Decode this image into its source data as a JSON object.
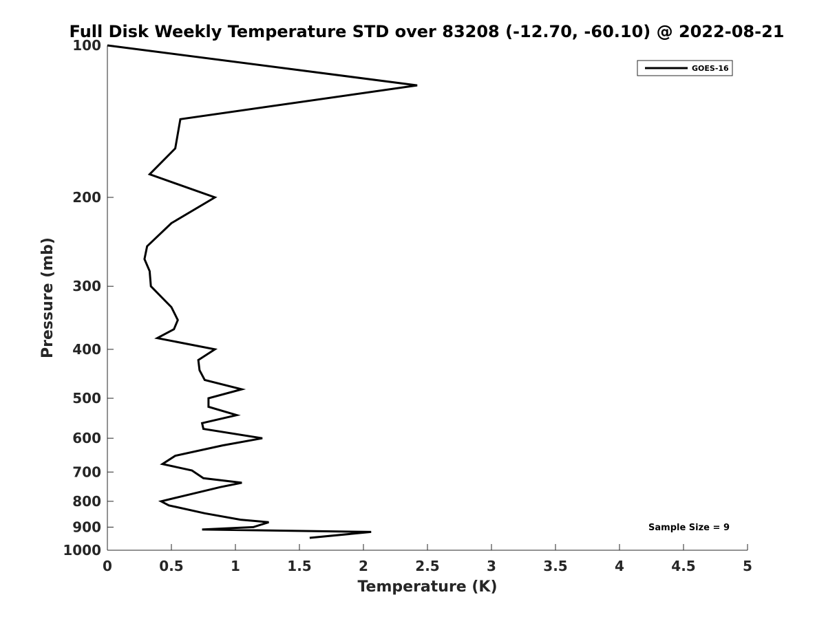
{
  "chart_data": {
    "type": "line",
    "title": "Full Disk Weekly Temperature STD over 83208 (-12.70, -60.10) @ 2022-08-21",
    "xlabel": "Temperature (K)",
    "ylabel": "Pressure (mb)",
    "xlim": [
      0,
      5
    ],
    "ylim": [
      100,
      1000
    ],
    "y_scale": "log",
    "y_reversed": true,
    "x_ticks": [
      "0",
      "0.5",
      "1",
      "1.5",
      "2",
      "2.5",
      "3",
      "3.5",
      "4",
      "4.5",
      "5"
    ],
    "y_ticks": [
      "100",
      "200",
      "300",
      "400",
      "500",
      "600",
      "700",
      "800",
      "900",
      "1000"
    ],
    "grid": false,
    "legend": {
      "placement": "top-right",
      "entries": [
        "GOES-16"
      ]
    },
    "annotation": "Sample Size = 9",
    "series": [
      {
        "name": "GOES-16",
        "color": "#000000",
        "points": [
          [
            0.0,
            100
          ],
          [
            2.42,
            120
          ],
          [
            0.57,
            140
          ],
          [
            0.53,
            160
          ],
          [
            0.33,
            180
          ],
          [
            0.84,
            200
          ],
          [
            0.5,
            225
          ],
          [
            0.31,
            250
          ],
          [
            0.29,
            265
          ],
          [
            0.33,
            280
          ],
          [
            0.34,
            300
          ],
          [
            0.5,
            330
          ],
          [
            0.55,
            350
          ],
          [
            0.52,
            365
          ],
          [
            0.39,
            380
          ],
          [
            0.84,
            400
          ],
          [
            0.71,
            420
          ],
          [
            0.72,
            440
          ],
          [
            0.76,
            460
          ],
          [
            1.05,
            480
          ],
          [
            0.79,
            500
          ],
          [
            0.79,
            520
          ],
          [
            1.01,
            540
          ],
          [
            0.74,
            560
          ],
          [
            0.75,
            575
          ],
          [
            1.21,
            600
          ],
          [
            0.9,
            620
          ],
          [
            0.53,
            650
          ],
          [
            0.43,
            675
          ],
          [
            0.66,
            695
          ],
          [
            0.75,
            720
          ],
          [
            1.05,
            735
          ],
          [
            0.88,
            750
          ],
          [
            0.6,
            780
          ],
          [
            0.42,
            800
          ],
          [
            0.48,
            815
          ],
          [
            0.76,
            845
          ],
          [
            1.04,
            870
          ],
          [
            1.26,
            880
          ],
          [
            1.14,
            900
          ],
          [
            0.74,
            910
          ],
          [
            2.06,
            920
          ],
          [
            1.58,
            945
          ]
        ]
      }
    ]
  }
}
